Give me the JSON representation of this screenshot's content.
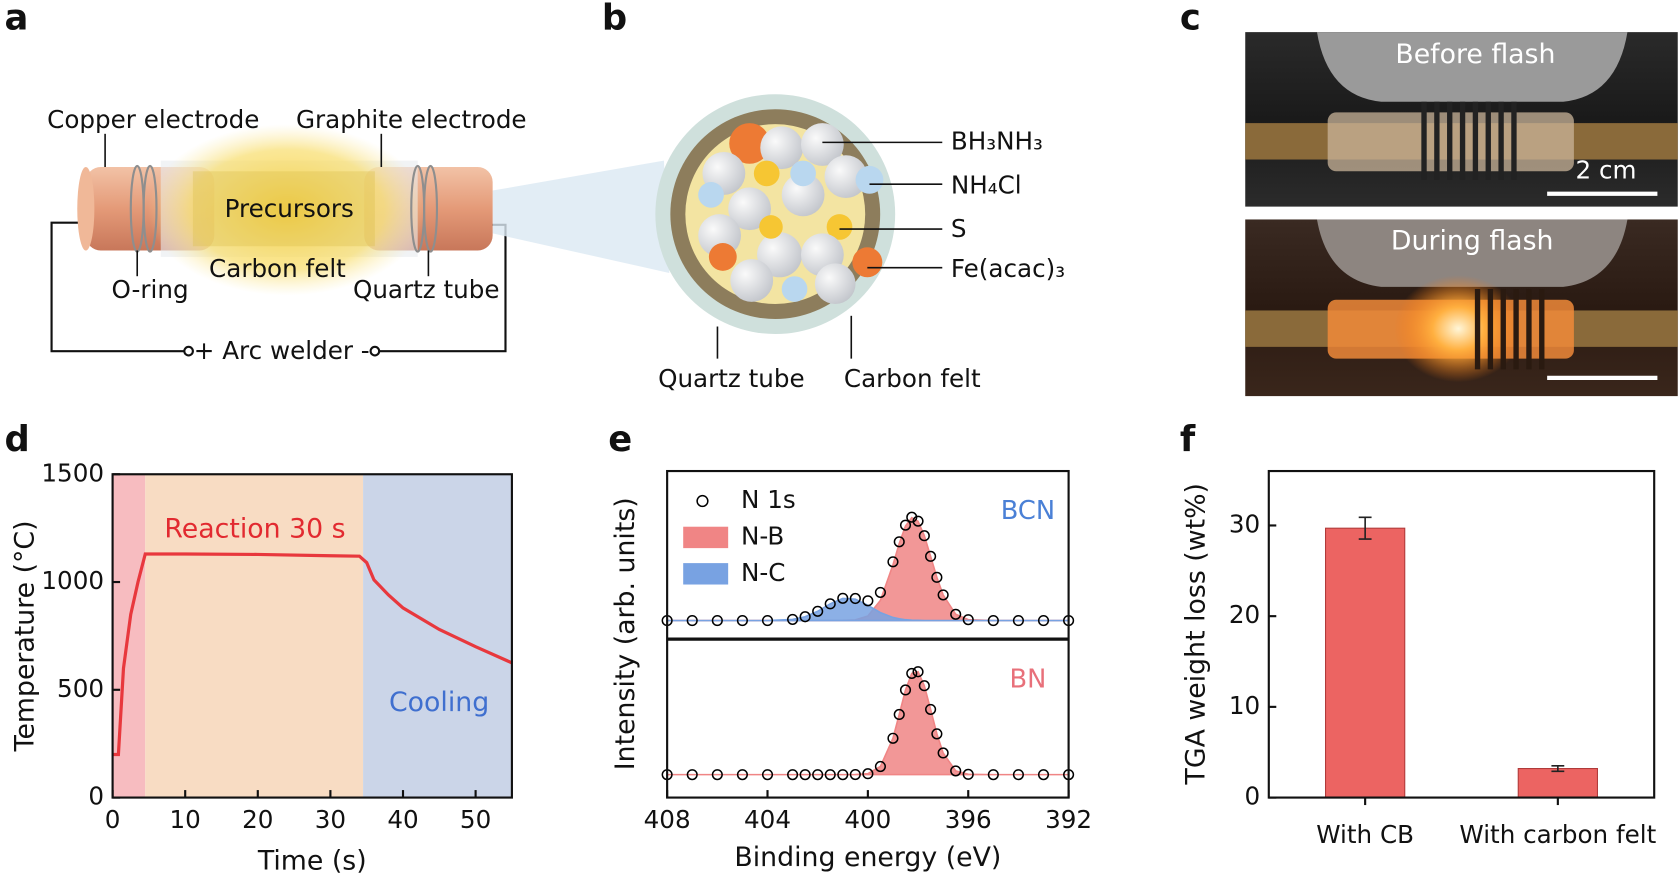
{
  "panel_labels": [
    "a",
    "b",
    "c",
    "d",
    "e",
    "f"
  ],
  "diagram_a": {
    "labels": [
      "Copper electrode",
      "Graphite electrode",
      "Precursors",
      "Carbon felt",
      "O-ring",
      "Quartz tube",
      "+ Arc welder -"
    ]
  },
  "diagram_b": {
    "components": [
      "BH₃NH₃",
      "NH₄Cl",
      "S",
      "Fe(acac)₃"
    ],
    "labels": [
      "Quartz tube",
      "Carbon felt"
    ]
  },
  "photos_c": {
    "top_caption": "Before flash",
    "scale_bar": "2 cm",
    "bottom_caption": "During flash"
  },
  "chart_data": [
    {
      "type": "line",
      "xlabel": "Time (s)",
      "ylabel": "Temperature (°C)",
      "xlim": [
        0,
        55
      ],
      "ylim": [
        0,
        1500
      ],
      "xticks": [
        0,
        10,
        20,
        30,
        40,
        50
      ],
      "yticks": [
        0,
        500,
        1000,
        1500
      ],
      "regions": [
        {
          "start": 0,
          "end": 4.5,
          "color": "#f7bcc0"
        },
        {
          "start": 4.5,
          "end": 34.5,
          "color": "#f8dcc3"
        },
        {
          "start": 34.5,
          "end": 55,
          "color": "#cbd5e8"
        }
      ],
      "annotations": [
        "Reaction 30 s",
        "Cooling"
      ],
      "series": [
        {
          "color": "#e8383d",
          "x": [
            0,
            0.8,
            1.5,
            2.5,
            3.5,
            4.5,
            10,
            20,
            30,
            34,
            35,
            36,
            38,
            40,
            45,
            50,
            55
          ],
          "values": [
            200,
            200,
            600,
            850,
            1000,
            1130,
            1130,
            1128,
            1122,
            1120,
            1090,
            1010,
            940,
            880,
            780,
            700,
            625
          ]
        }
      ]
    },
    {
      "type": "line",
      "xlabel": "Binding energy (eV)",
      "ylabel": "Intensity (arb. units)",
      "xlim": [
        408,
        392
      ],
      "xticks": [
        408,
        404,
        400,
        396,
        392
      ],
      "subplots": [
        {
          "label": "BCN",
          "ylim": [
            -18,
            145
          ],
          "x": [
            408,
            407,
            406,
            405,
            404,
            403,
            402.5,
            402,
            401.5,
            401,
            400.5,
            400,
            399.5,
            399,
            398.75,
            398.5,
            398.25,
            398,
            397.75,
            397.5,
            397.25,
            397,
            396.5,
            396,
            395,
            394,
            393,
            392
          ],
          "series": [
            {
              "name": "N 1s",
              "style": "points",
              "color": "#000000",
              "values": [
                0,
                0,
                0,
                0,
                0,
                1.1,
                3.7,
                9.0,
                16.2,
                21.6,
                21.4,
                19.2,
                27.3,
                57,
                76.4,
                92.5,
                100.2,
                96.4,
                82.3,
                62.3,
                41.9,
                24.9,
                6.1,
                0.9,
                0,
                0,
                0,
                0
              ]
            },
            {
              "name": "N-B",
              "style": "area",
              "color": "#f08585",
              "values": [
                0,
                0,
                0,
                0,
                0,
                0,
                0,
                0,
                0,
                0.1,
                0.6,
                4.4,
                19.6,
                54,
                74.7,
                91.7,
                99.8,
                96.2,
                82.3,
                62.3,
                41.9,
                24.9,
                6.1,
                0.9,
                0,
                0,
                0,
                0
              ]
            },
            {
              "name": "N-C",
              "style": "area",
              "color": "#78a2e2",
              "values": [
                0,
                0,
                0,
                0,
                0,
                1.1,
                3.7,
                9.0,
                16.2,
                21.5,
                20.8,
                14.8,
                7.7,
                3.0,
                1.7,
                0.8,
                0.4,
                0.2,
                0,
                0,
                0,
                0,
                0,
                0,
                0,
                0,
                0,
                0
              ]
            }
          ]
        },
        {
          "label": "BN",
          "ylim": [
            -22,
            130
          ],
          "x": [
            408,
            407,
            406,
            405,
            404,
            403,
            402.5,
            402,
            401.5,
            401,
            400.5,
            400,
            399.5,
            399,
            398.75,
            398.5,
            398.25,
            398,
            397.75,
            397.5,
            397.25,
            397,
            396.5,
            396,
            395,
            394,
            393,
            392
          ],
          "series": [
            {
              "style": "points",
              "color": "#000000",
              "values": [
                0,
                0,
                0,
                0,
                0,
                0,
                0,
                0,
                0,
                0,
                0.1,
                0.9,
                7.8,
                34.9,
                57.7,
                81.2,
                97.1,
                98.7,
                85.3,
                62.6,
                39.1,
                20.8,
                3.6,
                0.3,
                0,
                0,
                0,
                0
              ]
            },
            {
              "style": "area",
              "color": "#f08585",
              "values": [
                0,
                0,
                0,
                0,
                0,
                0,
                0,
                0,
                0,
                0,
                0.1,
                0.9,
                7.8,
                34.9,
                57.7,
                81.2,
                97.1,
                98.7,
                85.3,
                62.6,
                39.1,
                20.8,
                3.6,
                0.3,
                0,
                0,
                0,
                0
              ]
            }
          ]
        }
      ]
    },
    {
      "type": "bar",
      "ylabel": "TGA weight loss (wt%)",
      "categories": [
        "With CB",
        "With carbon felt"
      ],
      "values": [
        29.7,
        3.2
      ],
      "errors": [
        1.2,
        0.3
      ],
      "color": "#ec6462",
      "ylim": [
        0,
        36
      ],
      "yticks": [
        0,
        10,
        20,
        30
      ]
    }
  ]
}
